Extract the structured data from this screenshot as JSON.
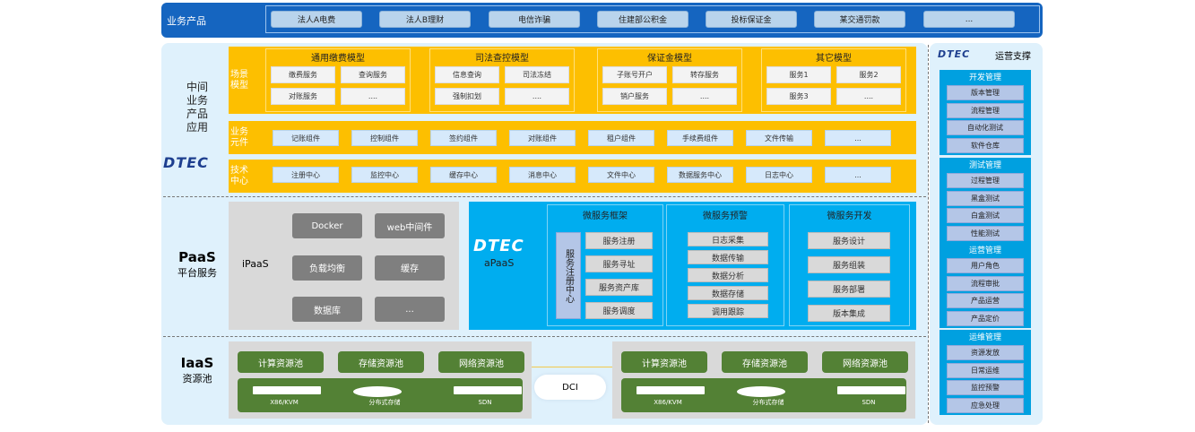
{
  "business_products": {
    "label": "业务产品",
    "items": [
      "法人A电费",
      "法人B理财",
      "电信诈骗",
      "住建部公积金",
      "投标保证金",
      "某交通罚款",
      "..."
    ]
  },
  "middle": {
    "label": [
      "中间",
      "业务",
      "产品",
      "应用"
    ],
    "logo": "DTEC",
    "scene": {
      "label": "场景模型",
      "groups": [
        {
          "title": "通用缴费模型",
          "items": [
            "缴费服务",
            "查询服务",
            "对账服务",
            "...."
          ]
        },
        {
          "title": "司法查控模型",
          "items": [
            "信息查询",
            "司法冻结",
            "强制扣划",
            "...."
          ]
        },
        {
          "title": "保证金模型",
          "items": [
            "子账号开户",
            "转存服务",
            "销户服务",
            "...."
          ]
        },
        {
          "title": "其它模型",
          "items": [
            "服务1",
            "服务2",
            "服务3",
            "...."
          ]
        }
      ]
    },
    "components": {
      "label": "业务元件",
      "items": [
        "记账组件",
        "控制组件",
        "签约组件",
        "对账组件",
        "租户组件",
        "手续费组件",
        "文件传输",
        "..."
      ]
    },
    "tech": {
      "label": "技术中心",
      "items": [
        "注册中心",
        "监控中心",
        "缓存中心",
        "消息中心",
        "文件中心",
        "数据服务中心",
        "日志中心",
        "..."
      ]
    }
  },
  "paas": {
    "title": "PaaS",
    "subtitle": "平台服务",
    "ipaas": {
      "label": "iPaaS",
      "items": [
        "Docker",
        "web中间件",
        "负载均衡",
        "缓存",
        "数据库",
        "..."
      ]
    },
    "apaas": {
      "logo": "DTEC",
      "label": "aPaaS",
      "framework": {
        "title": "微服务框架",
        "center": "服务注册中心",
        "items": [
          "服务注册",
          "服务寻址",
          "服务资产库",
          "服务调度"
        ]
      },
      "alert": {
        "title": "微服务预警",
        "items": [
          "日志采集",
          "数据传输",
          "数据分析",
          "数据存储",
          "调用跟踪"
        ]
      },
      "dev": {
        "title": "微服务开发",
        "items": [
          "服务设计",
          "服务组装",
          "服务部署",
          "版本集成"
        ]
      }
    }
  },
  "iaas": {
    "title": "IaaS",
    "subtitle": "资源池",
    "link": "DCI",
    "pools": [
      "计算资源池",
      "存储资源池",
      "网络资源池"
    ],
    "hardware": [
      "X86/KVM",
      "分布式存储",
      "SDN"
    ]
  },
  "ops": {
    "logo": "DTEC",
    "title": "运营支撑",
    "sections": [
      {
        "title": "开发管理",
        "items": [
          "版本管理",
          "流程管理",
          "自动化测试",
          "软件仓库"
        ]
      },
      {
        "title": "测试管理",
        "items": [
          "过程管理",
          "黑盒测试",
          "白盒测试",
          "性能测试"
        ]
      },
      {
        "title": "运营管理",
        "items": [
          "用户角色",
          "流程审批",
          "产品运营",
          "产品定价"
        ]
      },
      {
        "title": "运维管理",
        "items": [
          "资源发放",
          "日常运维",
          "监控预警",
          "应急处理"
        ]
      }
    ]
  },
  "colors": {
    "top": "#1565c0",
    "yellow": "#fdbf00",
    "apaas": "#00adef",
    "green": "#538135",
    "panel": "#dff1fc"
  }
}
